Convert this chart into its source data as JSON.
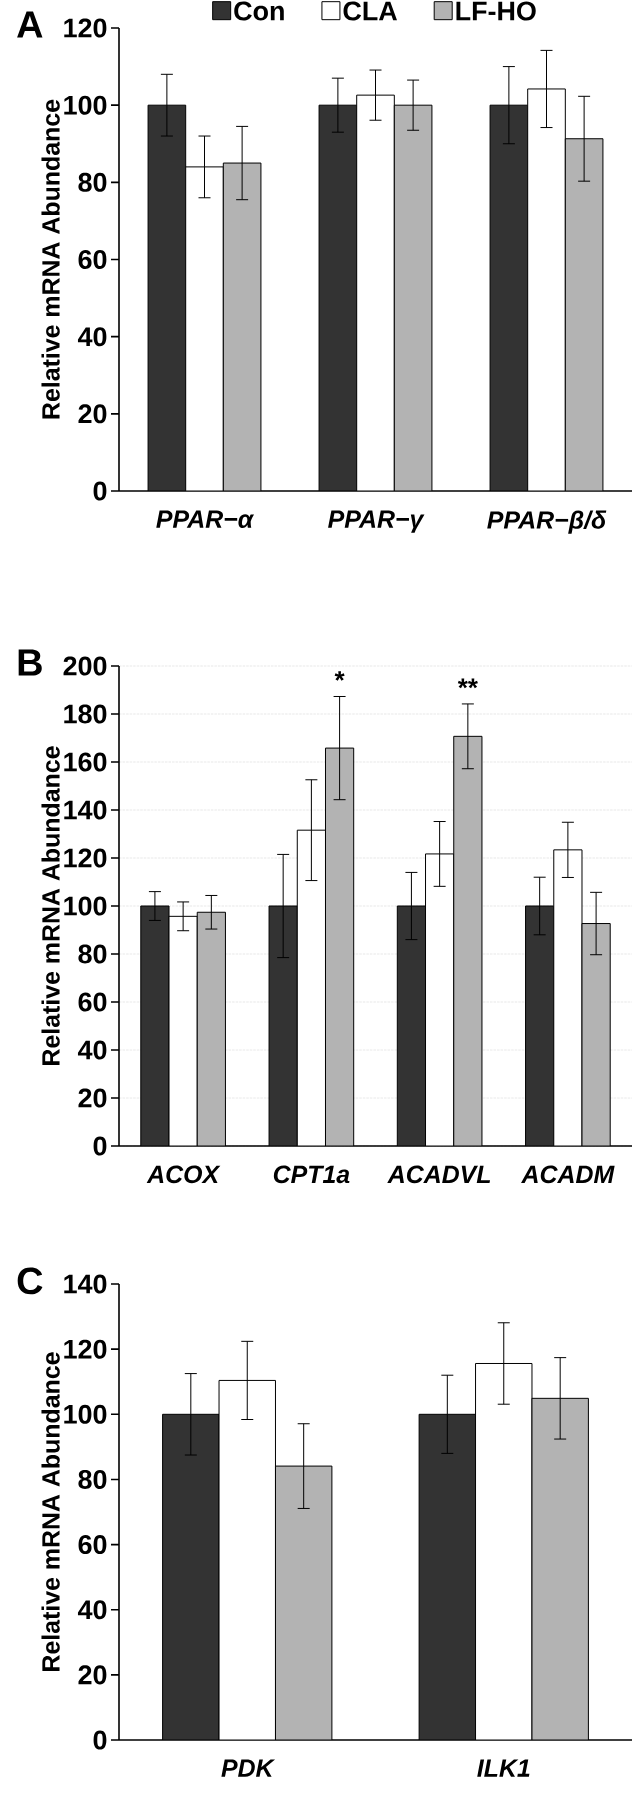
{
  "chart_data": [
    {
      "type": "bar",
      "title": "A",
      "ylabel": "Relative mRNA Abundance",
      "categories": [
        "PPAR−α",
        "PPAR−γ",
        "PPAR−β/δ"
      ],
      "ylim": [
        0,
        120
      ],
      "yticks": [
        0,
        20,
        40,
        60,
        80,
        100,
        120
      ],
      "legend": "top",
      "grid": false,
      "series": [
        {
          "name": "Con",
          "color": "#333333",
          "values": [
            100,
            100,
            100
          ],
          "errors": [
            8,
            7,
            10
          ]
        },
        {
          "name": "CLA",
          "color": "#ffffff",
          "values": [
            84,
            102.6,
            104.2
          ],
          "errors": [
            8,
            6.5,
            10
          ]
        },
        {
          "name": "LF-HO",
          "color": "#b3b3b3",
          "values": [
            85,
            100,
            91.3
          ],
          "errors": [
            9.5,
            6.5,
            11
          ]
        }
      ]
    },
    {
      "type": "bar",
      "title": "B",
      "ylabel": "Relative mRNA Abundance",
      "categories": [
        "ACOX",
        "CPT1a",
        "ACADVL",
        "ACADM"
      ],
      "ylim": [
        0,
        200
      ],
      "yticks": [
        0,
        20,
        40,
        60,
        80,
        100,
        120,
        140,
        160,
        180,
        200
      ],
      "legend": false,
      "grid": "y",
      "annotations": [
        "*",
        "**"
      ],
      "series": [
        {
          "color": "#333333",
          "values": [
            100,
            100,
            100,
            100
          ],
          "errors": [
            6,
            21.5,
            14,
            12
          ]
        },
        {
          "color": "#ffffff",
          "values": [
            95.7,
            131.6,
            121.7,
            123.4
          ],
          "errors": [
            6,
            21,
            13.5,
            11.5
          ]
        },
        {
          "color": "#b3b3b3",
          "values": [
            97.4,
            165.8,
            170.7,
            92.7
          ],
          "errors": [
            7,
            21.5,
            13.5,
            13
          ]
        }
      ]
    },
    {
      "type": "bar",
      "title": "C",
      "ylabel": "Relative mRNA Abundance",
      "categories": [
        "PDK",
        "ILK1"
      ],
      "ylim": [
        0,
        140
      ],
      "yticks": [
        0,
        20,
        40,
        60,
        80,
        100,
        120,
        140
      ],
      "legend": false,
      "grid": false,
      "series": [
        {
          "color": "#333333",
          "values": [
            100,
            100
          ],
          "errors": [
            12.5,
            12
          ]
        },
        {
          "color": "#ffffff",
          "values": [
            110.4,
            115.6
          ],
          "errors": [
            12,
            12.5
          ]
        },
        {
          "color": "#b3b3b3",
          "values": [
            84.1,
            104.9
          ],
          "errors": [
            13,
            12.5
          ]
        }
      ]
    }
  ]
}
